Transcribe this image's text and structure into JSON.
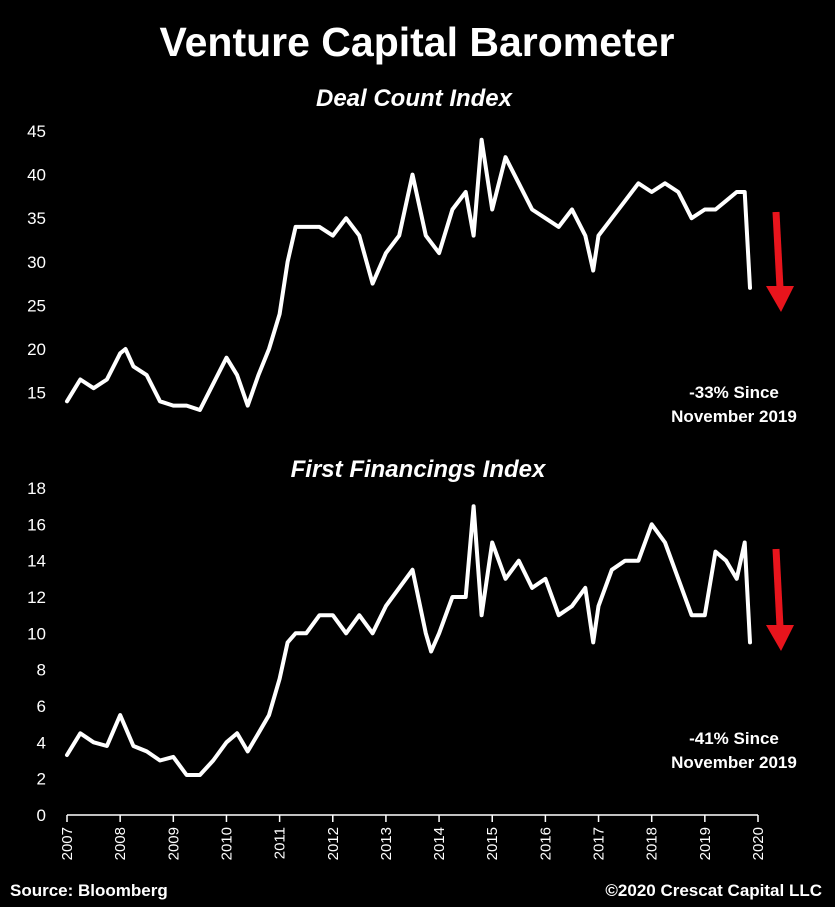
{
  "title": "Venture Capital Barometer",
  "source": "Source: Bloomberg",
  "copyright": "©2020 Crescat Capital LLC",
  "x_axis": {
    "range": [
      2007,
      2020
    ],
    "ticks": [
      "2007",
      "2008",
      "2009",
      "2010",
      "2011",
      "2012",
      "2013",
      "2014",
      "2015",
      "2016",
      "2017",
      "2018",
      "2019",
      "2020"
    ]
  },
  "colors": {
    "background": "#000000",
    "line": "#ffffff",
    "arrow": "#e8141c"
  },
  "chart_data": [
    {
      "type": "line",
      "title": "Deal Count Index",
      "ylim": [
        13,
        45
      ],
      "yticks": [
        15,
        20,
        25,
        30,
        35,
        40,
        45
      ],
      "annotation": [
        "-33% Since",
        "November 2019"
      ],
      "arrow": "down",
      "x": [
        2007.0,
        2007.25,
        2007.5,
        2007.75,
        2008.0,
        2008.1,
        2008.25,
        2008.5,
        2008.75,
        2009.0,
        2009.25,
        2009.5,
        2009.75,
        2010.0,
        2010.2,
        2010.4,
        2010.6,
        2010.8,
        2011.0,
        2011.15,
        2011.3,
        2011.5,
        2011.75,
        2012.0,
        2012.25,
        2012.5,
        2012.75,
        2013.0,
        2013.25,
        2013.5,
        2013.75,
        2014.0,
        2014.25,
        2014.5,
        2014.65,
        2014.8,
        2015.0,
        2015.25,
        2015.5,
        2015.75,
        2016.0,
        2016.25,
        2016.5,
        2016.75,
        2016.9,
        2017.0,
        2017.25,
        2017.5,
        2017.75,
        2018.0,
        2018.25,
        2018.5,
        2018.75,
        2019.0,
        2019.2,
        2019.4,
        2019.6,
        2019.75,
        2019.85
      ],
      "y": [
        14,
        16.5,
        15.5,
        16.5,
        19.5,
        20,
        18,
        17,
        14,
        13.5,
        13.5,
        13,
        16,
        19,
        17,
        13.5,
        17,
        20,
        24,
        30,
        34,
        34,
        34,
        33,
        35,
        33,
        27.5,
        31,
        33,
        40,
        33,
        31,
        36,
        38,
        33,
        44,
        36,
        42,
        39,
        36,
        35,
        34,
        36,
        33,
        29,
        33,
        35,
        37,
        39,
        38,
        39,
        38,
        35,
        36,
        36,
        37,
        38,
        38,
        27
      ]
    },
    {
      "type": "line",
      "title": "First Financings Index",
      "ylim": [
        0,
        18
      ],
      "yticks": [
        0,
        2,
        4,
        6,
        8,
        10,
        12,
        14,
        16,
        18
      ],
      "annotation": [
        "-41% Since",
        "November 2019"
      ],
      "arrow": "down",
      "x": [
        2007.0,
        2007.25,
        2007.5,
        2007.75,
        2008.0,
        2008.25,
        2008.5,
        2008.75,
        2009.0,
        2009.25,
        2009.5,
        2009.75,
        2010.0,
        2010.2,
        2010.4,
        2010.6,
        2010.8,
        2011.0,
        2011.15,
        2011.3,
        2011.5,
        2011.75,
        2012.0,
        2012.25,
        2012.5,
        2012.75,
        2013.0,
        2013.25,
        2013.5,
        2013.75,
        2013.85,
        2014.0,
        2014.25,
        2014.5,
        2014.65,
        2014.8,
        2015.0,
        2015.25,
        2015.5,
        2015.75,
        2016.0,
        2016.25,
        2016.5,
        2016.75,
        2016.9,
        2017.0,
        2017.25,
        2017.5,
        2017.75,
        2018.0,
        2018.25,
        2018.5,
        2018.75,
        2019.0,
        2019.2,
        2019.4,
        2019.6,
        2019.75,
        2019.85
      ],
      "y": [
        3.3,
        4.5,
        4,
        3.8,
        5.5,
        3.8,
        3.5,
        3,
        3.2,
        2.2,
        2.2,
        3,
        4,
        4.5,
        3.5,
        4.5,
        5.5,
        7.5,
        9.5,
        10,
        10,
        11,
        11,
        10,
        11,
        10,
        11.5,
        12.5,
        13.5,
        10,
        9,
        10,
        12,
        12,
        17,
        11,
        15,
        13,
        14,
        12.5,
        13,
        11,
        11.5,
        12.5,
        9.5,
        11.5,
        13.5,
        14,
        14,
        16,
        15,
        13,
        11,
        11,
        14.5,
        14,
        13,
        15,
        9.5
      ]
    }
  ]
}
